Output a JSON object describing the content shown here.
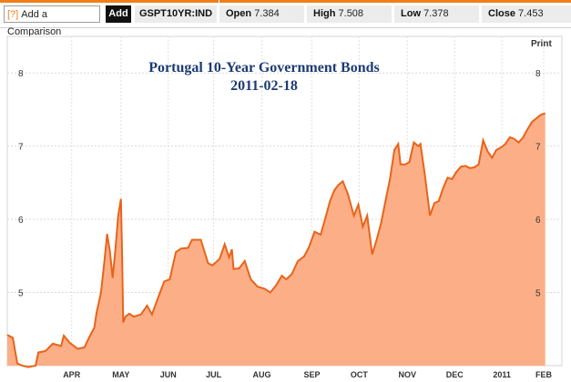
{
  "toolbar": {
    "help_label": "[?]",
    "compare_label": "Add a Comparison",
    "add_label": "Add",
    "symbol": "GSPT10YR:IND",
    "open_label": "Open",
    "open_value": "7.384",
    "high_label": "High",
    "high_value": "7.508",
    "low_label": "Low",
    "low_value": "7.378",
    "close_label": "Close",
    "close_value": "7.453",
    "accent_color": "#f07f1a"
  },
  "print_label": "Print",
  "chart_data": {
    "type": "area",
    "title": "Portugal 10-Year Government Bonds",
    "subtitle": "2011-02-18",
    "xlabel": "",
    "ylabel": "",
    "ylim": [
      4.0,
      8.5
    ],
    "xlim": [
      0,
      1
    ],
    "y_ticks": [
      "5",
      "6",
      "7",
      "8"
    ],
    "x_tick_labels": [
      "APR",
      "MAY",
      "JUN",
      "JUL",
      "AUG",
      "SEP",
      "OCT",
      "NOV",
      "DEC",
      "2011",
      "FEB"
    ],
    "x_tick_positions": [
      0.1161,
      0.2049,
      0.2902,
      0.3721,
      0.459,
      0.5492,
      0.6344,
      0.7213,
      0.8066,
      0.8918,
      0.9672
    ],
    "grid": true,
    "line_color": "#e8641b",
    "fill_color": "#fcae87",
    "series": [
      {
        "name": "GSPT10YR:IND",
        "points": [
          [
            0.0,
            4.42
          ],
          [
            0.01,
            4.38
          ],
          [
            0.018,
            4.03
          ],
          [
            0.027,
            4.0
          ],
          [
            0.038,
            3.98
          ],
          [
            0.051,
            4.0
          ],
          [
            0.056,
            4.18
          ],
          [
            0.069,
            4.2
          ],
          [
            0.082,
            4.3
          ],
          [
            0.097,
            4.27
          ],
          [
            0.102,
            4.41
          ],
          [
            0.113,
            4.31
          ],
          [
            0.127,
            4.23
          ],
          [
            0.139,
            4.25
          ],
          [
            0.148,
            4.39
          ],
          [
            0.157,
            4.52
          ],
          [
            0.161,
            4.72
          ],
          [
            0.169,
            5.0
          ],
          [
            0.175,
            5.42
          ],
          [
            0.18,
            5.8
          ],
          [
            0.185,
            5.56
          ],
          [
            0.19,
            5.2
          ],
          [
            0.195,
            5.6
          ],
          [
            0.2,
            6.05
          ],
          [
            0.205,
            6.28
          ],
          [
            0.207,
            5.5
          ],
          [
            0.209,
            4.59
          ],
          [
            0.213,
            4.67
          ],
          [
            0.22,
            4.71
          ],
          [
            0.228,
            4.67
          ],
          [
            0.241,
            4.7
          ],
          [
            0.252,
            4.82
          ],
          [
            0.261,
            4.7
          ],
          [
            0.272,
            4.93
          ],
          [
            0.283,
            5.15
          ],
          [
            0.293,
            5.18
          ],
          [
            0.304,
            5.55
          ],
          [
            0.313,
            5.6
          ],
          [
            0.326,
            5.61
          ],
          [
            0.333,
            5.72
          ],
          [
            0.349,
            5.72
          ],
          [
            0.362,
            5.4
          ],
          [
            0.37,
            5.37
          ],
          [
            0.383,
            5.46
          ],
          [
            0.392,
            5.66
          ],
          [
            0.4,
            5.48
          ],
          [
            0.405,
            5.59
          ],
          [
            0.408,
            5.32
          ],
          [
            0.418,
            5.33
          ],
          [
            0.428,
            5.43
          ],
          [
            0.439,
            5.18
          ],
          [
            0.451,
            5.08
          ],
          [
            0.464,
            5.05
          ],
          [
            0.474,
            5.0
          ],
          [
            0.484,
            5.09
          ],
          [
            0.495,
            5.23
          ],
          [
            0.503,
            5.18
          ],
          [
            0.513,
            5.25
          ],
          [
            0.524,
            5.43
          ],
          [
            0.535,
            5.49
          ],
          [
            0.544,
            5.62
          ],
          [
            0.554,
            5.83
          ],
          [
            0.565,
            5.79
          ],
          [
            0.574,
            6.03
          ],
          [
            0.582,
            6.25
          ],
          [
            0.59,
            6.4
          ],
          [
            0.597,
            6.47
          ],
          [
            0.605,
            6.52
          ],
          [
            0.614,
            6.35
          ],
          [
            0.625,
            6.05
          ],
          [
            0.633,
            6.2
          ],
          [
            0.641,
            5.9
          ],
          [
            0.649,
            6.05
          ],
          [
            0.658,
            5.52
          ],
          [
            0.666,
            5.72
          ],
          [
            0.674,
            5.95
          ],
          [
            0.682,
            6.25
          ],
          [
            0.69,
            6.55
          ],
          [
            0.698,
            6.95
          ],
          [
            0.705,
            7.03
          ],
          [
            0.709,
            6.75
          ],
          [
            0.717,
            6.75
          ],
          [
            0.725,
            6.78
          ],
          [
            0.733,
            7.05
          ],
          [
            0.741,
            7.0
          ],
          [
            0.745,
            7.03
          ],
          [
            0.753,
            6.6
          ],
          [
            0.762,
            6.05
          ],
          [
            0.77,
            6.22
          ],
          [
            0.778,
            6.25
          ],
          [
            0.786,
            6.43
          ],
          [
            0.794,
            6.57
          ],
          [
            0.802,
            6.55
          ],
          [
            0.81,
            6.65
          ],
          [
            0.818,
            6.72
          ],
          [
            0.826,
            6.73
          ],
          [
            0.834,
            6.7
          ],
          [
            0.842,
            6.71
          ],
          [
            0.85,
            6.75
          ],
          [
            0.858,
            7.08
          ],
          [
            0.866,
            6.93
          ],
          [
            0.874,
            6.84
          ],
          [
            0.882,
            6.95
          ],
          [
            0.89,
            6.98
          ],
          [
            0.898,
            7.03
          ],
          [
            0.906,
            7.12
          ],
          [
            0.914,
            7.1
          ],
          [
            0.922,
            7.05
          ],
          [
            0.93,
            7.12
          ],
          [
            0.938,
            7.23
          ],
          [
            0.946,
            7.33
          ],
          [
            0.954,
            7.38
          ],
          [
            0.962,
            7.43
          ],
          [
            0.97,
            7.45
          ]
        ]
      }
    ]
  }
}
